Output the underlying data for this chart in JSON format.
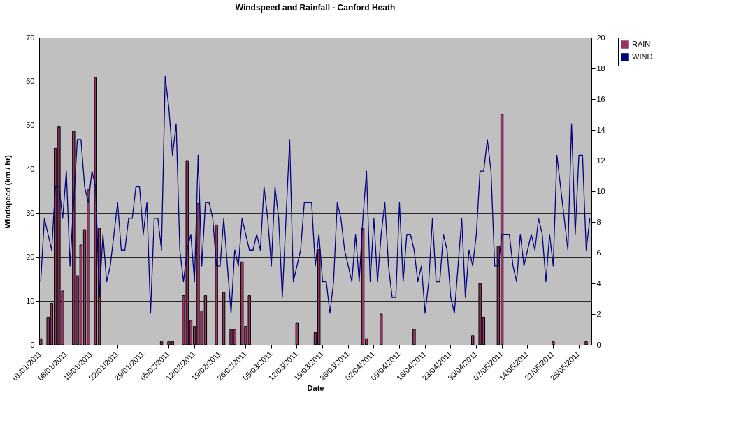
{
  "chart_data": {
    "type": "bar",
    "title": "Windspeed and Rainfall - Canford Heath",
    "xlabel": "Date",
    "ylabel": "Windspeed (km / hr)",
    "categories": [
      "01/01/2011",
      null,
      null,
      null,
      null,
      null,
      null,
      "08/01/2011",
      null,
      null,
      null,
      null,
      null,
      null,
      "15/01/2011",
      null,
      null,
      null,
      null,
      null,
      null,
      "22/01/2011",
      null,
      null,
      null,
      null,
      null,
      null,
      "29/01/2011",
      null,
      null,
      null,
      null,
      null,
      null,
      "05/02/2011",
      null,
      null,
      null,
      null,
      null,
      null,
      "12/02/2011",
      null,
      null,
      null,
      null,
      null,
      null,
      "19/02/2011",
      null,
      null,
      null,
      null,
      null,
      null,
      "26/02/2011",
      null,
      null,
      null,
      null,
      null,
      null,
      "05/03/2011",
      null,
      null,
      null,
      null,
      null,
      null,
      "12/03/2011",
      null,
      null,
      null,
      null,
      null,
      null,
      "19/03/2011",
      null,
      null,
      null,
      null,
      null,
      null,
      "26/03/2011",
      null,
      null,
      null,
      null,
      null,
      null,
      "02/04/2011",
      null,
      null,
      null,
      null,
      null,
      null,
      "09/04/2011",
      null,
      null,
      null,
      null,
      null,
      null,
      "16/04/2011",
      null,
      null,
      null,
      null,
      null,
      null,
      "23/04/2011",
      null,
      null,
      null,
      null,
      null,
      null,
      "30/04/2011",
      null,
      null,
      null,
      null,
      null,
      null,
      "07/05/2011",
      null,
      null,
      null,
      null,
      null,
      null,
      "14/05/2011",
      null,
      null,
      null,
      null,
      null,
      null,
      "21/05/2011",
      null,
      null,
      null,
      null,
      null,
      null,
      "28/05/2011",
      null,
      null,
      null
    ],
    "series": [
      {
        "name": "RAIN",
        "type": "bar",
        "axis": "y2",
        "color": "#993366",
        "values": [
          0.4,
          null,
          1.8,
          2.7,
          12.8,
          14.2,
          3.5,
          null,
          null,
          13.9,
          4.5,
          6.5,
          7.5,
          10.1,
          null,
          17.4,
          7.6,
          null,
          null,
          null,
          null,
          null,
          null,
          null,
          null,
          null,
          null,
          null,
          null,
          null,
          null,
          null,
          null,
          0.2,
          null,
          0.2,
          0.2,
          null,
          null,
          3.2,
          12.0,
          1.6,
          1.2,
          9.2,
          2.2,
          3.2,
          null,
          null,
          7.8,
          null,
          3.4,
          null,
          1.0,
          1.0,
          null,
          5.4,
          1.2,
          3.2,
          null,
          null,
          null,
          null,
          null,
          null,
          null,
          null,
          null,
          null,
          null,
          null,
          1.4,
          null,
          null,
          null,
          null,
          0.8,
          6.2,
          null,
          null,
          null,
          null,
          null,
          null,
          null,
          null,
          null,
          null,
          null,
          7.6,
          0.4,
          null,
          null,
          null,
          2.0,
          null,
          null,
          null,
          null,
          null,
          null,
          null,
          null,
          1.0,
          null,
          null,
          null,
          null,
          null,
          null,
          null,
          null,
          null,
          null,
          null,
          null,
          null,
          null,
          null,
          0.6,
          null,
          4.0,
          1.8,
          null,
          null,
          null,
          6.4,
          15.0,
          null,
          null,
          null,
          null,
          null,
          null,
          null,
          null,
          null,
          null,
          null,
          null,
          null,
          0.2,
          null,
          null,
          null,
          null,
          null,
          null,
          null,
          null,
          0.2,
          null
        ]
      },
      {
        "name": "WIND",
        "type": "line",
        "color": "#000080",
        "values": [
          14.4,
          28.8,
          25.2,
          21.6,
          36,
          36,
          28.8,
          39.6,
          18,
          32.4,
          46.8,
          46.8,
          36,
          32.4,
          39.6,
          36,
          10.8,
          25.2,
          14.4,
          18,
          25.2,
          32.4,
          21.6,
          21.6,
          28.8,
          28.8,
          36,
          36,
          25.2,
          32.4,
          7.2,
          28.8,
          28.8,
          21.6,
          61.2,
          54,
          43.2,
          50.4,
          21.6,
          14.4,
          21.6,
          25.2,
          14.4,
          43.2,
          18,
          32.4,
          32.4,
          28.8,
          18,
          18,
          28.8,
          18,
          7.2,
          21.6,
          18,
          28.8,
          25.2,
          21.6,
          21.6,
          25.2,
          21.6,
          36,
          28.8,
          18,
          36,
          28.8,
          10.8,
          28.8,
          46.8,
          14.4,
          18,
          21.6,
          32.4,
          32.4,
          32.4,
          18,
          25.2,
          14.4,
          14.4,
          7.2,
          14.4,
          32.4,
          28.8,
          21.6,
          18,
          14.4,
          25.2,
          14.4,
          28.8,
          39.6,
          14.4,
          28.8,
          14.4,
          25.2,
          32.4,
          18,
          10.8,
          10.8,
          32.4,
          14.4,
          25.2,
          25.2,
          21.6,
          14.4,
          18,
          7.2,
          14.4,
          28.8,
          14.4,
          14.4,
          25.2,
          21.6,
          10.8,
          7.2,
          18,
          28.8,
          10.8,
          21.6,
          18,
          25.2,
          39.6,
          39.6,
          46.8,
          39.6,
          18,
          18,
          25.2,
          25.2,
          25.2,
          18,
          14.4,
          25.2,
          18,
          21.6,
          25.2,
          21.6,
          28.8,
          25.2,
          14.4,
          25.2,
          18,
          43.2,
          36,
          28.8,
          21.6,
          50.4,
          25.2,
          43.2,
          43.2,
          21.6,
          28.8
        ]
      }
    ],
    "ylim": [
      0,
      70
    ],
    "yticks": [
      0,
      10,
      20,
      30,
      40,
      50,
      60,
      70
    ],
    "y2lim": [
      0,
      20
    ],
    "y2ticks": [
      0,
      2,
      4,
      6,
      8,
      10,
      12,
      14,
      16,
      18,
      20
    ],
    "grid": "y",
    "legend": "right"
  }
}
